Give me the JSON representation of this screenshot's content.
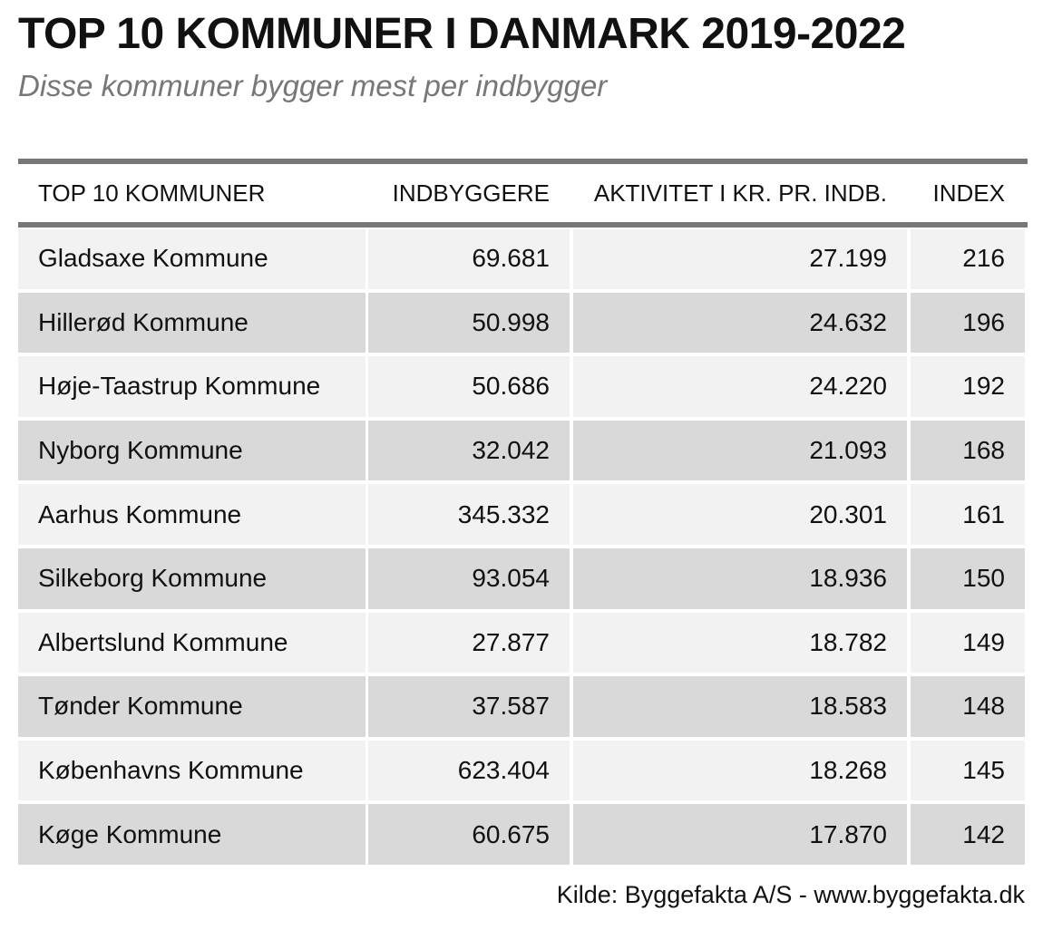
{
  "header": {
    "title": "TOP 10 KOMMUNER I DANMARK 2019-2022",
    "subtitle": "Disse kommuner bygger mest per indbygger"
  },
  "table": {
    "columns": [
      "TOP 10 KOMMUNER",
      "INDBYGGERE",
      "AKTIVITET I KR. PR. INDB.",
      "INDEX"
    ],
    "rows": [
      [
        "Gladsaxe Kommune",
        "69.681",
        "27.199",
        "216"
      ],
      [
        "Hillerød Kommune",
        "50.998",
        "24.632",
        "196"
      ],
      [
        "Høje-Taastrup Kommune",
        "50.686",
        "24.220",
        "192"
      ],
      [
        "Nyborg Kommune",
        "32.042",
        "21.093",
        "168"
      ],
      [
        "Aarhus Kommune",
        "345.332",
        "20.301",
        "161"
      ],
      [
        "Silkeborg Kommune",
        "93.054",
        "18.936",
        "150"
      ],
      [
        "Albertslund Kommune",
        "27.877",
        "18.782",
        "149"
      ],
      [
        "Tønder Kommune",
        "37.587",
        "18.583",
        "148"
      ],
      [
        "Københavns Kommune",
        "623.404",
        "18.268",
        "145"
      ],
      [
        "Køge Kommune",
        "60.675",
        "17.870",
        "142"
      ]
    ]
  },
  "source": "Kilde: Byggefakta A/S - www.byggefakta.dk"
}
